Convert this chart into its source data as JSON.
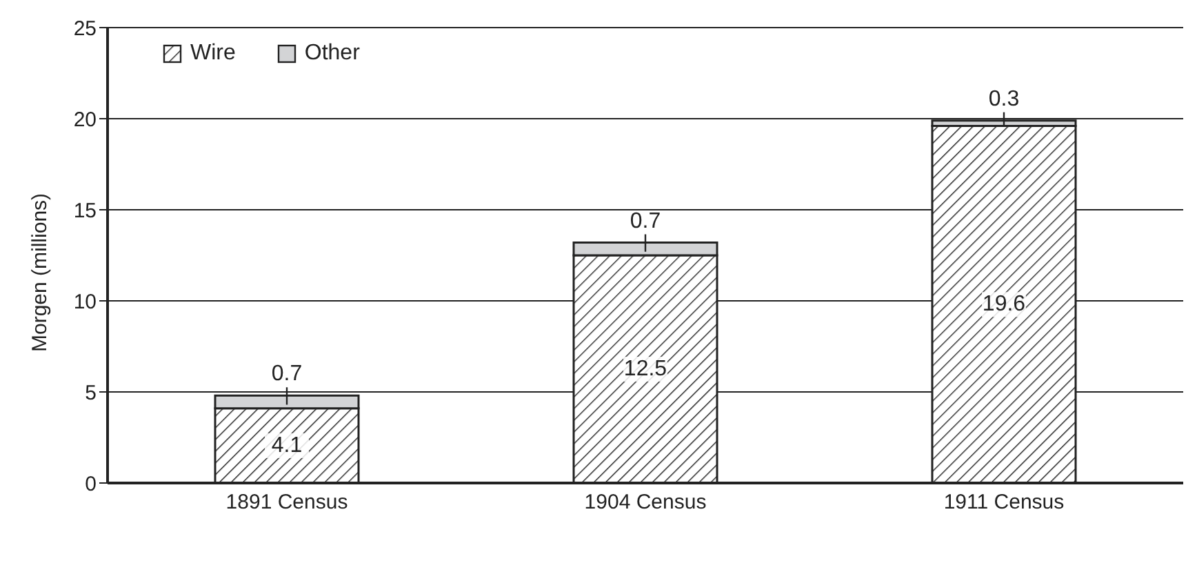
{
  "chart_data": {
    "type": "bar",
    "stacked": true,
    "ylabel": "Morgen (millions)",
    "categories": [
      "1891 Census",
      "1904 Census",
      "1911 Census"
    ],
    "series": [
      {
        "name": "Wire",
        "color": "#222222",
        "values": [
          4.1,
          12.5,
          19.6
        ]
      },
      {
        "name": "Other",
        "color": "#d3d4d6",
        "values": [
          0.7,
          0.7,
          0.3
        ]
      }
    ],
    "ylim": [
      0,
      25
    ],
    "yticks": [
      0,
      5,
      10,
      15,
      20,
      25
    ],
    "grid": "y",
    "legend": "top left",
    "data_labels": true
  }
}
